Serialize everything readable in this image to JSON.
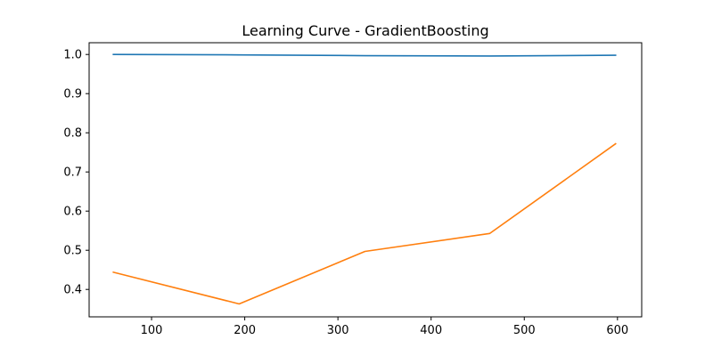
{
  "chart_data": {
    "type": "line",
    "title": "Learning Curve - GradientBoosting",
    "xlabel": "",
    "ylabel": "",
    "xlim": [
      33,
      626
    ],
    "ylim": [
      0.33,
      1.03
    ],
    "x_ticks": [
      100,
      200,
      300,
      400,
      500,
      600
    ],
    "y_ticks": [
      0.4,
      0.5,
      0.6,
      0.7,
      0.8,
      0.9,
      1.0
    ],
    "x_tick_labels": [
      "100",
      "200",
      "300",
      "400",
      "500",
      "600"
    ],
    "y_tick_labels": [
      "0.4",
      "0.5",
      "0.6",
      "0.7",
      "0.8",
      "0.9",
      "1.0"
    ],
    "grid": false,
    "legend": "none",
    "x": [
      59,
      194,
      329,
      463,
      598
    ],
    "series": [
      {
        "values": [
          1.0,
          0.999,
          0.997,
          0.996,
          0.998
        ],
        "color": "#1f77b4"
      },
      {
        "values": [
          0.444,
          0.363,
          0.497,
          0.543,
          0.772
        ],
        "color": "#ff7f0e"
      }
    ]
  }
}
